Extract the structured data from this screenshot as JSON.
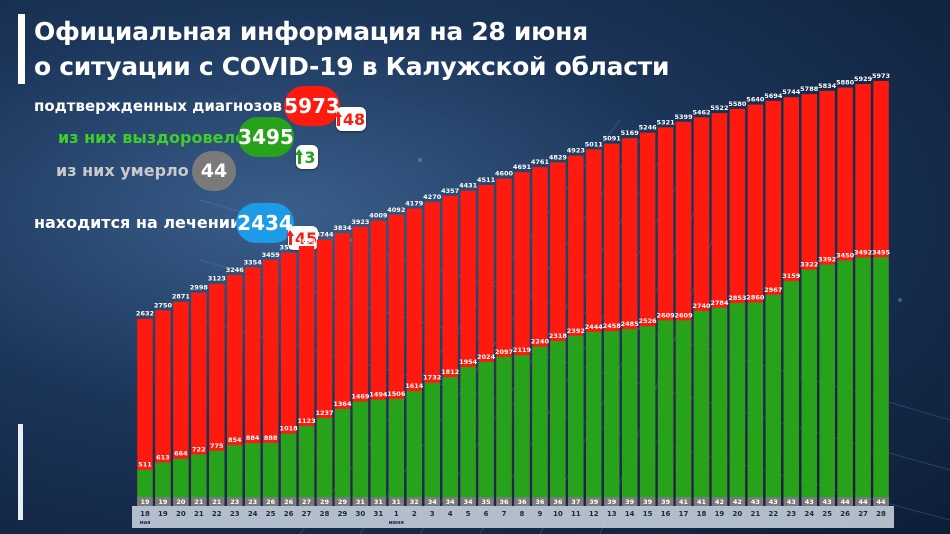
{
  "colors": {
    "confirmed": "#ff1a0f",
    "recovered": "#27a31b",
    "deaths": "#7a7a7a",
    "treatment": "#1e9be6"
  },
  "header": {
    "title_line1": "Официальная информация на 28 июня",
    "title_line2": "о ситуации с COVID-19 в Калужской области"
  },
  "stats": {
    "confirmed": {
      "label": "подтвержденных диагнозов",
      "value": "5973",
      "delta": "48"
    },
    "recovered": {
      "label_prefix": "из них ",
      "label_main": "выздоровело",
      "value": "3495",
      "delta": "3"
    },
    "deaths": {
      "label": "из них умерло",
      "value": "44"
    },
    "treatment": {
      "label": "находится на лечении",
      "value": "2434",
      "delta": "45"
    }
  },
  "chart_data": {
    "type": "bar",
    "categories": [
      "18",
      "19",
      "20",
      "21",
      "22",
      "23",
      "24",
      "25",
      "26",
      "27",
      "28",
      "29",
      "30",
      "31",
      "1",
      "2",
      "3",
      "4",
      "5",
      "6",
      "7",
      "8",
      "9",
      "10",
      "11",
      "12",
      "13",
      "14",
      "15",
      "16",
      "17",
      "18",
      "19",
      "20",
      "21",
      "22",
      "23",
      "24",
      "25",
      "26",
      "27",
      "28"
    ],
    "month_labels": [
      {
        "index": 0,
        "text": "мая"
      },
      {
        "index": 14,
        "text": "июня"
      }
    ],
    "ylim": [
      0,
      6000
    ],
    "series": [
      {
        "key": "confirmed",
        "values": [
          2632,
          2750,
          2871,
          2998,
          3123,
          3246,
          3354,
          3459,
          3560,
          3653,
          3744,
          3834,
          3923,
          4009,
          4092,
          4179,
          4270,
          4357,
          4431,
          4511,
          4600,
          4691,
          4761,
          4829,
          4923,
          5011,
          5091,
          5169,
          5246,
          5321,
          5399,
          5462,
          5522,
          5580,
          5640,
          5694,
          5744,
          5788,
          5834,
          5880,
          5929,
          5973
        ]
      },
      {
        "key": "recovered",
        "values": [
          511,
          613,
          664,
          722,
          775,
          854,
          884,
          888,
          1018,
          1123,
          1237,
          1364,
          1469,
          1494,
          1506,
          1614,
          1732,
          1812,
          1954,
          2024,
          2097,
          2119,
          2240,
          2318,
          2392,
          2444,
          2458,
          2485,
          2526,
          2609,
          2609,
          2740,
          2784,
          2853,
          2860,
          2967,
          3159,
          3322,
          3392,
          3450,
          3492,
          3495
        ]
      },
      {
        "key": "deaths",
        "values": [
          19,
          19,
          20,
          21,
          21,
          23,
          23,
          26,
          26,
          27,
          29,
          29,
          31,
          31,
          31,
          32,
          34,
          34,
          34,
          35,
          36,
          36,
          36,
          36,
          37,
          39,
          39,
          39,
          39,
          39,
          41,
          41,
          42,
          42,
          43,
          43,
          43,
          43,
          43,
          44,
          44,
          44
        ]
      }
    ]
  }
}
